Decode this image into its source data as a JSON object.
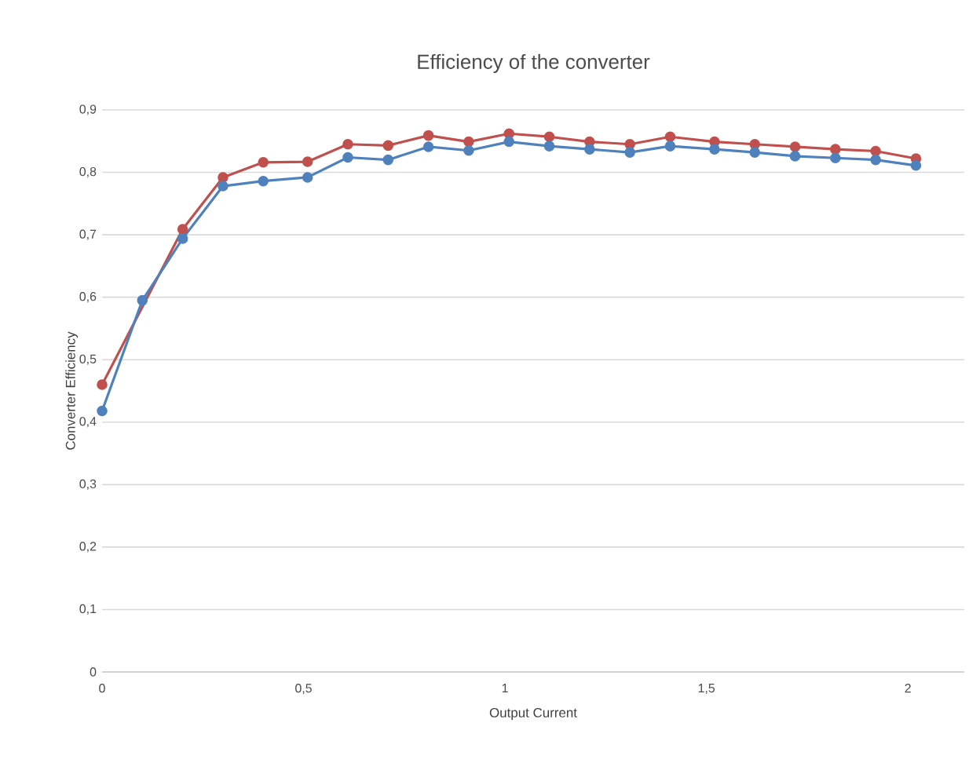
{
  "chart_data": {
    "type": "line",
    "title": "Efficiency of the converter",
    "xlabel": "Output Current",
    "ylabel": "Converter Efficiency",
    "x": [
      0,
      0.1,
      0.2,
      0.3,
      0.4,
      0.51,
      0.61,
      0.71,
      0.81,
      0.91,
      1.01,
      1.11,
      1.21,
      1.31,
      1.41,
      1.52,
      1.62,
      1.72,
      1.82,
      1.92,
      2.02
    ],
    "series": [
      {
        "color": "#c0504d",
        "values": [
          0.46,
          null,
          0.709,
          0.792,
          0.816,
          0.817,
          0.845,
          0.843,
          0.859,
          0.849,
          0.862,
          0.857,
          0.849,
          0.845,
          0.857,
          0.849,
          0.845,
          0.841,
          0.837,
          0.834,
          0.822
        ]
      },
      {
        "color": "#4f81bd",
        "values": [
          0.418,
          0.595,
          0.694,
          0.778,
          0.786,
          0.792,
          0.824,
          0.82,
          0.841,
          0.835,
          0.849,
          0.842,
          0.837,
          0.832,
          0.842,
          0.837,
          0.832,
          0.826,
          0.823,
          0.82,
          0.811
        ]
      }
    ],
    "xlim": [
      0,
      2.14
    ],
    "ylim": [
      0,
      0.9
    ],
    "xticks": [
      0,
      {
        "value": 0.5,
        "label": "0,5"
      },
      1,
      {
        "value": 1.5,
        "label": "1,5"
      },
      2
    ],
    "yticks": [
      0,
      {
        "value": 0.1,
        "label": "0,1"
      },
      {
        "value": 0.2,
        "label": "0,2"
      },
      {
        "value": 0.3,
        "label": "0,3"
      },
      {
        "value": 0.4,
        "label": "0,4"
      },
      {
        "value": 0.5,
        "label": "0,5"
      },
      {
        "value": 0.6,
        "label": "0,6"
      },
      {
        "value": 0.7,
        "label": "0,7"
      },
      {
        "value": 0.8,
        "label": "0,8"
      },
      {
        "value": 0.9,
        "label": "0,9"
      }
    ],
    "grid": "y",
    "marker": "circle",
    "line_style": "solid"
  }
}
